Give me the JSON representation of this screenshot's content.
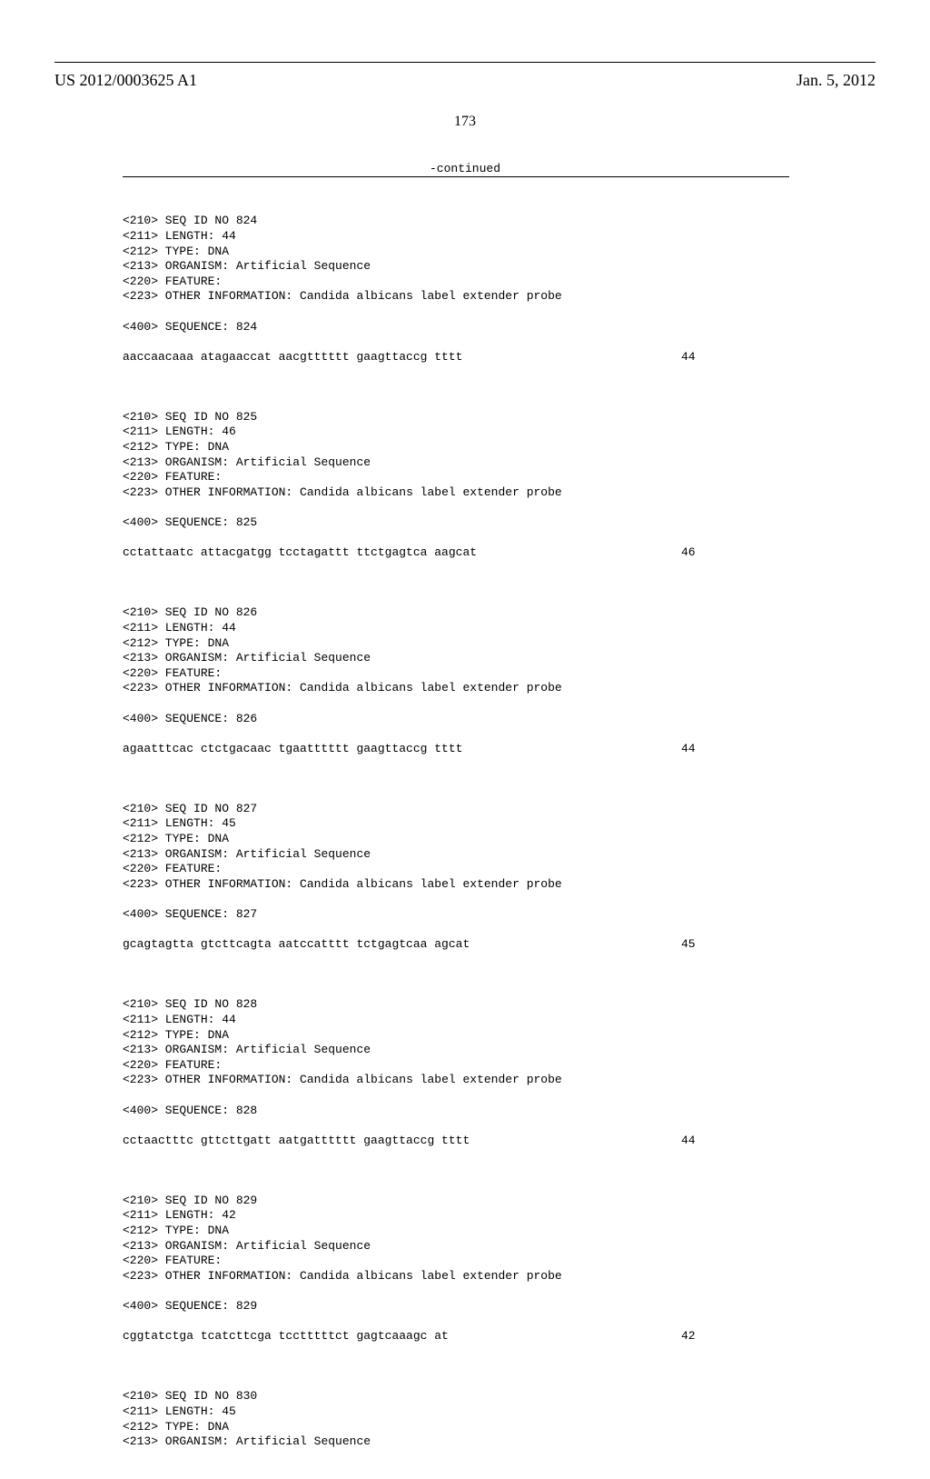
{
  "header": {
    "publication_number": "US 2012/0003625 A1",
    "publication_date": "Jan. 5, 2012",
    "page_number": "173"
  },
  "continued_label": "-continued",
  "sequences": [
    {
      "seq_id": "824",
      "length": "44",
      "type": "DNA",
      "organism": "Artificial Sequence",
      "feature": "",
      "other_info": "Candida albicans label extender probe",
      "sequence_no": "824",
      "sequence": "aaccaacaaa atagaaccat aacgtttttt gaagttaccg tttt",
      "seq_len": "44"
    },
    {
      "seq_id": "825",
      "length": "46",
      "type": "DNA",
      "organism": "Artificial Sequence",
      "feature": "",
      "other_info": "Candida albicans label extender probe",
      "sequence_no": "825",
      "sequence": "cctattaatc attacgatgg tcctagattt ttctgagtca aagcat",
      "seq_len": "46"
    },
    {
      "seq_id": "826",
      "length": "44",
      "type": "DNA",
      "organism": "Artificial Sequence",
      "feature": "",
      "other_info": "Candida albicans label extender probe",
      "sequence_no": "826",
      "sequence": "agaatttcac ctctgacaac tgaatttttt gaagttaccg tttt",
      "seq_len": "44"
    },
    {
      "seq_id": "827",
      "length": "45",
      "type": "DNA",
      "organism": "Artificial Sequence",
      "feature": "",
      "other_info": "Candida albicans label extender probe",
      "sequence_no": "827",
      "sequence": "gcagtagtta gtcttcagta aatccatttt tctgagtcaa agcat",
      "seq_len": "45"
    },
    {
      "seq_id": "828",
      "length": "44",
      "type": "DNA",
      "organism": "Artificial Sequence",
      "feature": "",
      "other_info": "Candida albicans label extender probe",
      "sequence_no": "828",
      "sequence": "cctaactttc gttcttgatt aatgatttttt gaagttaccg tttt",
      "seq_len": "44"
    },
    {
      "seq_id": "829",
      "length": "42",
      "type": "DNA",
      "organism": "Artificial Sequence",
      "feature": "",
      "other_info": "Candida albicans label extender probe",
      "sequence_no": "829",
      "sequence": "cggtatctga tcatcttcga tcctttttct gagtcaaagc at",
      "seq_len": "42"
    }
  ],
  "partial_sequence": {
    "seq_id": "830",
    "length": "45",
    "type": "DNA",
    "organism": "Artificial Sequence"
  },
  "colors": {
    "text": "#000000",
    "background": "#ffffff"
  }
}
